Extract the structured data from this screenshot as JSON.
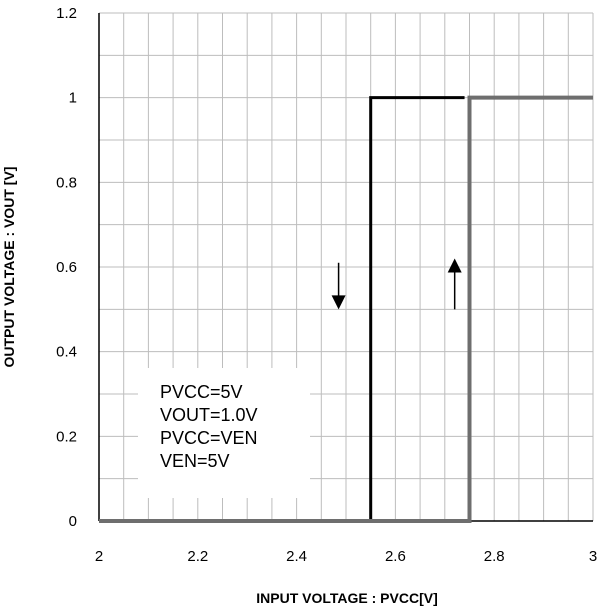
{
  "chart_data": {
    "type": "line",
    "title": "",
    "xlabel": "INPUT VOLTAGE : PVCC[V]",
    "ylabel": "OUTPUT VOLTAGE : VOUT [V]",
    "xlim": [
      2,
      3
    ],
    "ylim": [
      0,
      1.2
    ],
    "x_ticks": [
      "2",
      "2.2",
      "2.4",
      "2.6",
      "2.8",
      "3"
    ],
    "y_ticks": [
      "0",
      "0.2",
      "0.4",
      "0.6",
      "0.8",
      "1",
      "1.2"
    ],
    "grid": true,
    "series": [
      {
        "color": "#000000",
        "direction": "falling",
        "points": [
          [
            2.0,
            0
          ],
          [
            2.55,
            0
          ],
          [
            2.55,
            1.0
          ],
          [
            2.74,
            1.0
          ]
        ]
      },
      {
        "color": "#6e6e6e",
        "direction": "rising",
        "points": [
          [
            2.0,
            0
          ],
          [
            2.75,
            0
          ],
          [
            2.75,
            1.0
          ],
          [
            3.0,
            1.0
          ]
        ]
      }
    ],
    "annotations": {
      "conditions": [
        "PVCC=5V",
        "VOUT=1.0V",
        "PVCC=VEN",
        "VEN=5V"
      ],
      "arrows": [
        {
          "direction": "down",
          "x": 2.485,
          "y_from": 0.61,
          "y_to": 0.5
        },
        {
          "direction": "up",
          "x": 2.72,
          "y_from": 0.5,
          "y_to": 0.62
        }
      ]
    }
  }
}
